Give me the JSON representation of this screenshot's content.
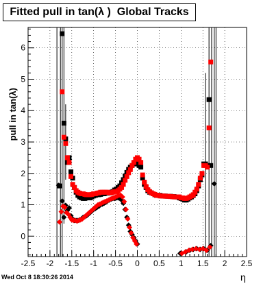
{
  "chart_data": {
    "type": "scatter",
    "title": "Fitted pull in tan(λ )  Global Tracks",
    "xlabel": "η",
    "ylabel": "pull in tan(λ)",
    "xlim": [
      -2.5,
      2.5
    ],
    "ylim": [
      -0.65,
      6.65
    ],
    "x_ticks": [
      "-2.5",
      "-2",
      "-1.5",
      "-1",
      "-0.5",
      "0",
      "0.5",
      "1",
      "1.5",
      "2",
      "2.5"
    ],
    "y_ticks": [
      "0",
      "1",
      "2",
      "3",
      "4",
      "5",
      "6"
    ],
    "grid": true,
    "legend": "none",
    "series": [
      {
        "marker": "square",
        "color": "#000000",
        "points": [
          [
            -1.78,
            1.6
          ],
          [
            -1.72,
            6.45
          ],
          [
            -1.68,
            3.6
          ],
          [
            -1.64,
            3.1
          ],
          [
            -1.6,
            2.35
          ],
          [
            -1.56,
            2.5
          ],
          [
            -1.52,
            2.05
          ],
          [
            -1.48,
            1.85
          ],
          [
            -1.44,
            1.55
          ],
          [
            -1.4,
            1.4
          ],
          [
            -1.36,
            1.3
          ],
          [
            -1.32,
            1.25
          ],
          [
            -1.28,
            1.22
          ],
          [
            -1.24,
            1.2
          ],
          [
            -1.2,
            1.2
          ],
          [
            -1.16,
            1.22
          ],
          [
            -1.12,
            1.22
          ],
          [
            -1.08,
            1.22
          ],
          [
            -1.04,
            1.25
          ],
          [
            -1.0,
            1.28
          ],
          [
            -0.96,
            1.3
          ],
          [
            -0.92,
            1.32
          ],
          [
            -0.88,
            1.32
          ],
          [
            -0.84,
            1.33
          ],
          [
            -0.8,
            1.35
          ],
          [
            -0.76,
            1.35
          ],
          [
            -0.72,
            1.37
          ],
          [
            -0.68,
            1.37
          ],
          [
            -0.64,
            1.38
          ],
          [
            -0.6,
            1.4
          ],
          [
            -0.56,
            1.42
          ],
          [
            -0.52,
            1.47
          ],
          [
            -0.48,
            1.5
          ],
          [
            -0.44,
            1.55
          ],
          [
            -0.4,
            1.6
          ],
          [
            -0.36,
            1.7
          ],
          [
            -0.32,
            1.8
          ],
          [
            -0.28,
            1.92
          ],
          [
            -0.24,
            2.03
          ],
          [
            -0.2,
            2.13
          ],
          [
            -0.16,
            2.2
          ],
          [
            -0.12,
            2.25
          ],
          [
            -0.08,
            2.3
          ],
          [
            -0.04,
            2.32
          ],
          [
            0.0,
            2.3
          ],
          [
            0.04,
            2.25
          ],
          [
            0.08,
            2.2
          ],
          [
            0.12,
            1.85
          ],
          [
            0.16,
            1.65
          ],
          [
            0.2,
            1.55
          ],
          [
            0.24,
            1.45
          ],
          [
            0.28,
            1.4
          ],
          [
            0.32,
            1.38
          ],
          [
            0.36,
            1.35
          ],
          [
            0.4,
            1.32
          ],
          [
            0.44,
            1.3
          ],
          [
            0.48,
            1.3
          ],
          [
            0.52,
            1.3
          ],
          [
            0.56,
            1.28
          ],
          [
            0.6,
            1.28
          ],
          [
            0.64,
            1.28
          ],
          [
            0.68,
            1.27
          ],
          [
            0.72,
            1.27
          ],
          [
            0.76,
            1.27
          ],
          [
            0.8,
            1.26
          ],
          [
            0.84,
            1.26
          ],
          [
            0.88,
            1.25
          ],
          [
            0.92,
            1.25
          ],
          [
            0.96,
            1.22
          ],
          [
            1.0,
            1.2
          ],
          [
            1.04,
            1.18
          ],
          [
            1.08,
            1.15
          ],
          [
            1.12,
            1.15
          ],
          [
            1.16,
            1.18
          ],
          [
            1.2,
            1.22
          ],
          [
            1.24,
            1.25
          ],
          [
            1.28,
            1.3
          ],
          [
            1.32,
            1.35
          ],
          [
            1.36,
            1.45
          ],
          [
            1.4,
            1.6
          ],
          [
            1.44,
            1.8
          ],
          [
            1.48,
            1.95
          ],
          [
            1.52,
            2.3
          ],
          [
            1.56,
            2.3
          ],
          [
            1.6,
            2.25
          ],
          [
            1.64,
            4.35
          ],
          [
            1.68,
            2.25
          ]
        ]
      },
      {
        "marker": "square",
        "color": "#ff0000",
        "points": [
          [
            -1.72,
            4.6
          ],
          [
            -1.68,
            3.15
          ],
          [
            -1.64,
            2.95
          ],
          [
            -1.6,
            2.5
          ],
          [
            -1.56,
            2.35
          ],
          [
            -1.52,
            1.9
          ],
          [
            -1.48,
            1.65
          ],
          [
            -1.44,
            1.55
          ],
          [
            -1.4,
            1.45
          ],
          [
            -1.36,
            1.4
          ],
          [
            -1.32,
            1.37
          ],
          [
            -1.28,
            1.35
          ],
          [
            -1.24,
            1.35
          ],
          [
            -1.2,
            1.33
          ],
          [
            -1.16,
            1.32
          ],
          [
            -1.12,
            1.32
          ],
          [
            -1.08,
            1.32
          ],
          [
            -1.04,
            1.33
          ],
          [
            -1.0,
            1.35
          ],
          [
            -0.96,
            1.35
          ],
          [
            -0.92,
            1.37
          ],
          [
            -0.88,
            1.38
          ],
          [
            -0.84,
            1.4
          ],
          [
            -0.8,
            1.4
          ],
          [
            -0.76,
            1.4
          ],
          [
            -0.72,
            1.4
          ],
          [
            -0.68,
            1.4
          ],
          [
            -0.64,
            1.38
          ],
          [
            -0.6,
            1.38
          ],
          [
            -0.56,
            1.4
          ],
          [
            -0.52,
            1.42
          ],
          [
            -0.48,
            1.42
          ],
          [
            -0.44,
            1.45
          ],
          [
            -0.4,
            1.5
          ],
          [
            -0.36,
            1.55
          ],
          [
            -0.32,
            1.65
          ],
          [
            -0.28,
            1.78
          ],
          [
            -0.24,
            1.9
          ],
          [
            -0.2,
            2.02
          ],
          [
            -0.16,
            2.12
          ],
          [
            -0.12,
            2.25
          ],
          [
            -0.08,
            2.35
          ],
          [
            -0.04,
            2.45
          ],
          [
            0.0,
            2.5
          ],
          [
            0.04,
            2.45
          ],
          [
            0.08,
            2.35
          ],
          [
            0.12,
            1.95
          ],
          [
            0.16,
            1.72
          ],
          [
            0.2,
            1.58
          ],
          [
            0.24,
            1.48
          ],
          [
            0.28,
            1.42
          ],
          [
            0.32,
            1.38
          ],
          [
            0.36,
            1.35
          ],
          [
            0.4,
            1.33
          ],
          [
            0.44,
            1.3
          ],
          [
            0.48,
            1.3
          ],
          [
            0.52,
            1.28
          ],
          [
            0.56,
            1.28
          ],
          [
            0.6,
            1.28
          ],
          [
            0.64,
            1.27
          ],
          [
            0.68,
            1.27
          ],
          [
            0.72,
            1.27
          ],
          [
            0.76,
            1.26
          ],
          [
            0.8,
            1.26
          ],
          [
            0.84,
            1.25
          ],
          [
            0.88,
            1.25
          ],
          [
            0.92,
            1.25
          ],
          [
            0.96,
            1.25
          ],
          [
            1.0,
            1.22
          ],
          [
            1.04,
            1.22
          ],
          [
            1.08,
            1.2
          ],
          [
            1.12,
            1.2
          ],
          [
            1.16,
            1.22
          ],
          [
            1.2,
            1.25
          ],
          [
            1.24,
            1.28
          ],
          [
            1.28,
            1.32
          ],
          [
            1.32,
            1.4
          ],
          [
            1.36,
            1.5
          ],
          [
            1.4,
            1.65
          ],
          [
            1.44,
            1.85
          ],
          [
            1.48,
            2.0
          ],
          [
            1.52,
            2.25
          ],
          [
            1.56,
            2.25
          ],
          [
            1.6,
            2.2
          ],
          [
            1.64,
            3.45
          ],
          [
            1.68,
            5.55
          ]
        ]
      },
      {
        "marker": "diamond",
        "color": "#000000",
        "points": [
          [
            -1.8,
            1.62
          ],
          [
            -1.72,
            1.12
          ],
          [
            -1.68,
            0.6
          ],
          [
            -1.64,
            0.98
          ],
          [
            -1.6,
            0.82
          ],
          [
            -1.56,
            0.9
          ],
          [
            -1.52,
            0.65
          ],
          [
            -1.48,
            0.55
          ],
          [
            -1.44,
            0.5
          ],
          [
            -1.4,
            0.5
          ],
          [
            -1.36,
            0.5
          ],
          [
            -1.32,
            0.52
          ],
          [
            -1.28,
            0.55
          ],
          [
            -1.24,
            0.6
          ],
          [
            -1.2,
            0.62
          ],
          [
            -1.16,
            0.65
          ],
          [
            -1.12,
            0.7
          ],
          [
            -1.08,
            0.75
          ],
          [
            -1.04,
            0.8
          ],
          [
            -1.0,
            0.85
          ],
          [
            -0.96,
            0.88
          ],
          [
            -0.92,
            0.92
          ],
          [
            -0.88,
            0.95
          ],
          [
            -0.84,
            1.0
          ],
          [
            -0.8,
            1.02
          ],
          [
            -0.76,
            1.05
          ],
          [
            -0.72,
            1.08
          ],
          [
            -0.68,
            1.12
          ],
          [
            -0.64,
            1.15
          ],
          [
            -0.6,
            1.18
          ],
          [
            -0.56,
            1.2
          ],
          [
            -0.52,
            1.2
          ],
          [
            -0.48,
            1.22
          ],
          [
            -0.44,
            1.22
          ],
          [
            -0.4,
            1.2
          ],
          [
            -0.36,
            1.15
          ],
          [
            -0.32,
            1.05
          ],
          [
            -0.28,
            0.85
          ],
          [
            -0.24,
            0.6
          ],
          [
            -0.2,
            0.35
          ],
          [
            -0.16,
            0.15
          ],
          [
            -0.12,
            0.05
          ],
          [
            -0.08,
            -0.05
          ],
          [
            -0.04,
            -0.15
          ],
          [
            0.0,
            -0.25
          ],
          [
            0.98,
            -0.55
          ],
          [
            1.12,
            -0.5
          ],
          [
            1.2,
            -0.45
          ],
          [
            1.28,
            -0.42
          ],
          [
            1.36,
            -0.4
          ],
          [
            1.44,
            -0.42
          ],
          [
            1.52,
            -0.4
          ],
          [
            1.6,
            -0.45
          ],
          [
            1.68,
            -0.3
          ],
          [
            1.76,
            1.67
          ]
        ]
      },
      {
        "marker": "diamond",
        "color": "#ff0000",
        "points": [
          [
            -1.78,
            0.45
          ],
          [
            -1.74,
            0.78
          ],
          [
            -1.7,
            0.95
          ],
          [
            -1.66,
            0.92
          ],
          [
            -1.62,
            0.75
          ],
          [
            -1.58,
            0.7
          ],
          [
            -1.54,
            0.6
          ],
          [
            -1.5,
            0.52
          ],
          [
            -1.46,
            0.5
          ],
          [
            -1.42,
            0.5
          ],
          [
            -1.38,
            0.48
          ],
          [
            -1.34,
            0.5
          ],
          [
            -1.3,
            0.52
          ],
          [
            -1.26,
            0.55
          ],
          [
            -1.22,
            0.6
          ],
          [
            -1.18,
            0.65
          ],
          [
            -1.14,
            0.7
          ],
          [
            -1.1,
            0.75
          ],
          [
            -1.06,
            0.8
          ],
          [
            -1.02,
            0.85
          ],
          [
            -0.98,
            0.9
          ],
          [
            -0.94,
            0.95
          ],
          [
            -0.9,
            1.0
          ],
          [
            -0.86,
            1.02
          ],
          [
            -0.82,
            1.05
          ],
          [
            -0.78,
            1.08
          ],
          [
            -0.74,
            1.1
          ],
          [
            -0.7,
            1.12
          ],
          [
            -0.66,
            1.15
          ],
          [
            -0.62,
            1.18
          ],
          [
            -0.58,
            1.2
          ],
          [
            -0.54,
            1.22
          ],
          [
            -0.5,
            1.25
          ],
          [
            -0.46,
            1.28
          ],
          [
            -0.42,
            1.3
          ],
          [
            -0.38,
            1.3
          ],
          [
            -0.34,
            1.25
          ],
          [
            -0.3,
            1.1
          ],
          [
            -0.26,
            0.85
          ],
          [
            -0.22,
            0.55
          ],
          [
            -0.18,
            0.28
          ],
          [
            -0.14,
            0.1
          ],
          [
            -0.1,
            -0.05
          ],
          [
            -0.06,
            -0.15
          ],
          [
            -0.02,
            -0.25
          ],
          [
            1.02,
            -0.55
          ],
          [
            1.1,
            -0.5
          ],
          [
            1.18,
            -0.45
          ],
          [
            1.26,
            -0.42
          ],
          [
            1.34,
            -0.4
          ],
          [
            1.42,
            -0.42
          ],
          [
            1.5,
            -0.4
          ],
          [
            1.58,
            -0.45
          ],
          [
            1.66,
            -0.35
          ]
        ]
      }
    ],
    "error_bars": [
      {
        "x": -1.84,
        "y_low": -0.65,
        "y_high": 6.65
      },
      {
        "x": -1.76,
        "y_low": -0.65,
        "y_high": 6.65
      },
      {
        "x": -1.72,
        "y_low": -0.65,
        "y_high": 6.65
      },
      {
        "x": -1.68,
        "y_low": 0.4,
        "y_high": 6.65
      },
      {
        "x": -1.64,
        "y_low": 1.8,
        "y_high": 4.2
      },
      {
        "x": 1.56,
        "y_low": -0.65,
        "y_high": 5.2
      },
      {
        "x": 1.64,
        "y_low": -0.65,
        "y_high": 6.65
      },
      {
        "x": 1.7,
        "y_low": -0.65,
        "y_high": 6.65
      },
      {
        "x": 1.76,
        "y_low": -0.65,
        "y_high": 6.65
      },
      {
        "x": 1.8,
        "y_low": -0.65,
        "y_high": 6.65
      }
    ]
  },
  "footer": {
    "timestamp": "Wed Oct  8 18:30:26 2014"
  }
}
